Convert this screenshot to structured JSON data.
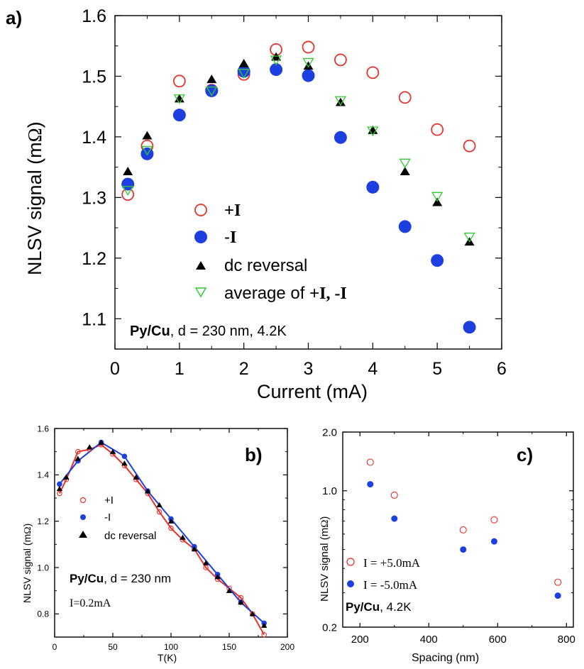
{
  "colors": {
    "plus": "#e8302a",
    "minus": "#1e3fe0",
    "dc": "#000000",
    "avg": "#2fcc2f",
    "axis": "#000000"
  },
  "chart_data": [
    {
      "panel": "a)",
      "type": "scatter",
      "xlabel": "Current (mA)",
      "ylabel_main": "NLSV signal (m",
      "ylabel_omega": "Ω",
      "ylabel_close": ")",
      "xlim": [
        0,
        6
      ],
      "ylim": [
        1.05,
        1.6
      ],
      "xticks": [
        "0",
        "1",
        "2",
        "3",
        "4",
        "5",
        "6"
      ],
      "yticks": [
        "1.1",
        "1.2",
        "1.3",
        "1.4",
        "1.5",
        "1.6"
      ],
      "annotation_bold": "Py/Cu",
      "annotation_rest": ",  d = 230 nm, 4.2K",
      "legend_position": "center",
      "series": [
        {
          "name": "+I",
          "marker": "open-circle",
          "color": "#e8302a",
          "x": [
            0.2,
            0.5,
            1,
            1.5,
            2,
            2.5,
            3,
            3.5,
            4,
            4.5,
            5,
            5.5
          ],
          "y": [
            1.305,
            1.385,
            1.492,
            1.477,
            1.503,
            1.544,
            1.548,
            1.527,
            1.506,
            1.465,
            1.412,
            1.385
          ]
        },
        {
          "name": "-I",
          "marker": "filled-circle",
          "color": "#1e3fe0",
          "x": [
            0.2,
            0.5,
            1,
            1.5,
            2,
            2.5,
            3,
            3.5,
            4,
            4.5,
            5,
            5.5
          ],
          "y": [
            1.322,
            1.372,
            1.436,
            1.476,
            1.508,
            1.511,
            1.501,
            1.399,
            1.317,
            1.252,
            1.196,
            1.086
          ]
        },
        {
          "name": "dc reversal",
          "marker": "filled-triangle",
          "color": "#000000",
          "x": [
            0.2,
            0.5,
            1,
            1.5,
            2,
            2.5,
            3,
            3.5,
            4,
            4.5,
            5,
            5.5
          ],
          "y": [
            1.343,
            1.402,
            1.463,
            1.495,
            1.521,
            1.532,
            1.517,
            1.457,
            1.411,
            1.343,
            1.292,
            1.227
          ]
        },
        {
          "name": "average of +I, -I",
          "marker": "open-triangle-down",
          "color": "#2fcc2f",
          "x": [
            0.2,
            0.5,
            1,
            1.5,
            2,
            2.5,
            3,
            3.5,
            4,
            4.5,
            5,
            5.5
          ],
          "y": [
            1.312,
            1.378,
            1.463,
            1.476,
            1.505,
            1.527,
            1.523,
            1.46,
            1.41,
            1.357,
            1.302,
            1.235
          ]
        }
      ],
      "legend": [
        {
          "sym": "+",
          "bold": "I",
          "rest": ""
        },
        {
          "sym": "-",
          "bold": "I",
          "rest": ""
        },
        {
          "sym": "dc reversal",
          "bold": "",
          "rest": ""
        },
        {
          "sym": "average of +",
          "bold": "I, -I",
          "rest": ""
        }
      ]
    },
    {
      "panel": "b)",
      "type": "line",
      "xlabel": "T(K)",
      "ylabel_main": "NLSV signal (m",
      "ylabel_omega": "Ω",
      "ylabel_close": ")",
      "xlim": [
        0,
        200
      ],
      "ylim": [
        0.7,
        1.6
      ],
      "xticks": [
        "0",
        "50",
        "100",
        "150",
        "200"
      ],
      "yticks": [
        "0.8",
        "1.0",
        "1.2",
        "1.4",
        "1.6"
      ],
      "annotation_bold": "Py/Cu",
      "annotation_rest": ",  d = 230 nm",
      "annotation2": "I=0.2mA",
      "legend_position": "left",
      "series": [
        {
          "name": "+I",
          "marker": "open-circle",
          "color": "#e8302a",
          "x": [
            4.2,
            10,
            20,
            30,
            40,
            50,
            60,
            70,
            80,
            90,
            100,
            110,
            120,
            130,
            140,
            150,
            160,
            170,
            180
          ],
          "y": [
            1.32,
            1.38,
            1.5,
            1.51,
            1.53,
            1.49,
            1.44,
            1.38,
            1.32,
            1.24,
            1.17,
            1.12,
            1.08,
            1.0,
            0.95,
            0.91,
            0.87,
            0.8,
            0.71
          ]
        },
        {
          "name": "-I",
          "marker": "filled-circle",
          "color": "#1e3fe0",
          "x": [
            4.2,
            20,
            40,
            60,
            80,
            100,
            120,
            140,
            160,
            180
          ],
          "y": [
            1.36,
            1.46,
            1.54,
            1.48,
            1.33,
            1.21,
            1.09,
            0.97,
            0.85,
            0.76
          ]
        },
        {
          "name": "dc reversal",
          "marker": "filled-triangle",
          "color": "#000000",
          "x": [
            4.2,
            10,
            20,
            30,
            40,
            50,
            60,
            70,
            80,
            90,
            100,
            110,
            120,
            130,
            140,
            150,
            160,
            170,
            180
          ],
          "y": [
            1.34,
            1.39,
            1.47,
            1.52,
            1.54,
            1.5,
            1.45,
            1.39,
            1.33,
            1.27,
            1.2,
            1.13,
            1.08,
            1.02,
            0.96,
            0.9,
            0.85,
            0.8,
            0.75
          ]
        }
      ],
      "legend": [
        {
          "sym": "+I",
          "bold": "",
          "rest": ""
        },
        {
          "sym": "-I",
          "bold": "",
          "rest": ""
        },
        {
          "sym": "dc reversal",
          "bold": "",
          "rest": ""
        }
      ]
    },
    {
      "panel": "c)",
      "type": "scatter",
      "xlabel": "Spacing (nm)",
      "ylabel_main": "NLSV signal (m",
      "ylabel_omega": "Ω",
      "ylabel_close": ")",
      "xlim": [
        150,
        820
      ],
      "ylim": [
        0.2,
        2.0
      ],
      "yscale": "log",
      "xticks": [
        "200",
        "400",
        "600",
        "800"
      ],
      "yticks": [
        "0.2",
        "1.0",
        "2.0"
      ],
      "annotation_bold": "Py/Cu",
      "annotation_rest": ", 4.2K",
      "legend_position": "bottom-left",
      "series": [
        {
          "name": "I = +5.0mA",
          "marker": "open-circle",
          "color": "#e8302a",
          "x": [
            230,
            300,
            500,
            590,
            775
          ],
          "y": [
            1.4,
            0.95,
            0.63,
            0.71,
            0.34
          ]
        },
        {
          "name": "I = -5.0mA",
          "marker": "filled-circle",
          "color": "#1e3fe0",
          "x": [
            230,
            300,
            500,
            590,
            775
          ],
          "y": [
            1.08,
            0.72,
            0.5,
            0.55,
            0.29
          ]
        }
      ],
      "legend": [
        {
          "sym": "I = +5.0mA",
          "bold": "",
          "rest": ""
        },
        {
          "sym": "I = -5.0mA",
          "bold": "",
          "rest": ""
        }
      ]
    }
  ]
}
